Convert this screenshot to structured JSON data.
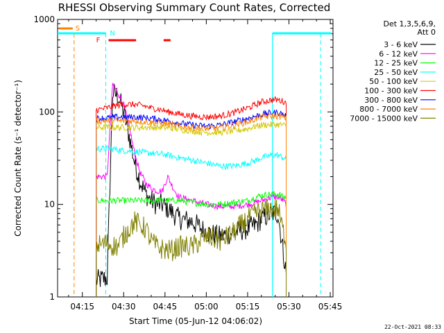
{
  "chart_data": {
    "type": "line",
    "title": "RHESSI Observing Summary Count Rates, Corrected",
    "xlabel": "Start Time (05-Jun-12 04:06:02)",
    "ylabel": "Corrected Count Rate (s⁻¹ detector⁻¹)",
    "yscale": "log",
    "ylim": [
      1,
      1000
    ],
    "xlim_minutes_after_0400": [
      6.0,
      106.0
    ],
    "x_ticks": [
      {
        "label": "04:15",
        "minute": 15
      },
      {
        "label": "04:30",
        "minute": 30
      },
      {
        "label": "04:45",
        "minute": 45
      },
      {
        "label": "05:00",
        "minute": 60
      },
      {
        "label": "05:15",
        "minute": 75
      },
      {
        "label": "05:30",
        "minute": 90
      },
      {
        "label": "05:45",
        "minute": 105
      }
    ],
    "y_ticks": [
      {
        "label": "1",
        "value": 1
      },
      {
        "label": "10",
        "value": 10
      },
      {
        "label": "100",
        "value": 100
      },
      {
        "label": "1000",
        "value": 1000
      }
    ],
    "legend_header": [
      "Det 1,3,5,6,9,",
      "Att 0"
    ],
    "legend_position": "right",
    "x_minutes_after_0400": [
      20,
      24,
      26,
      28,
      30,
      32,
      34,
      36,
      38,
      40,
      42,
      44,
      46,
      48,
      50,
      55,
      60,
      65,
      70,
      75,
      78,
      80,
      84,
      86,
      88,
      89
    ],
    "series": [
      {
        "name": "3 - 6 keV",
        "color": "#000000",
        "values": [
          1.5,
          1.6,
          160,
          150,
          100,
          55,
          28,
          18,
          13,
          11,
          10,
          10,
          9,
          8,
          7,
          6.5,
          5,
          4.5,
          5,
          5.5,
          6,
          7,
          8,
          8,
          3,
          1.8
        ]
      },
      {
        "name": "6 - 12 keV",
        "color": "#ff00ff",
        "values": [
          20,
          20,
          200,
          160,
          120,
          70,
          35,
          22,
          17,
          15,
          14,
          14,
          20,
          15,
          12,
          11,
          10,
          9.5,
          9.5,
          10,
          10.5,
          11,
          12,
          12,
          11,
          10
        ]
      },
      {
        "name": "12 - 25 keV",
        "color": "#00ff00",
        "values": [
          11,
          11,
          11,
          11,
          11,
          11,
          11,
          11,
          11,
          11,
          11,
          11,
          11,
          11,
          11,
          10.5,
          10,
          10,
          10.5,
          11,
          12,
          12.5,
          13,
          13,
          12,
          12
        ]
      },
      {
        "name": "25 - 50 keV",
        "color": "#00ffff",
        "values": [
          40,
          40,
          40,
          39,
          38,
          38,
          37,
          37,
          36,
          36,
          35,
          35,
          34,
          33,
          32,
          30,
          28,
          26,
          26,
          28,
          30,
          32,
          34,
          34,
          32,
          30
        ]
      },
      {
        "name": "50 - 100 keV",
        "color": "#d4c800",
        "values": [
          68,
          68,
          68,
          68,
          68,
          68,
          68,
          68,
          68,
          68,
          68,
          68,
          67,
          66,
          65,
          62,
          60,
          60,
          62,
          66,
          70,
          72,
          73,
          73,
          72,
          70
        ]
      },
      {
        "name": "100 - 300 keV",
        "color": "#ff0000",
        "values": [
          105,
          110,
          115,
          118,
          120,
          120,
          120,
          118,
          115,
          110,
          108,
          105,
          100,
          98,
          95,
          90,
          88,
          90,
          98,
          110,
          120,
          128,
          135,
          135,
          130,
          125
        ]
      },
      {
        "name": "300 - 800 keV",
        "color": "#0000ff",
        "values": [
          85,
          86,
          87,
          88,
          88,
          88,
          88,
          87,
          86,
          85,
          84,
          82,
          80,
          78,
          76,
          72,
          70,
          72,
          78,
          85,
          90,
          94,
          98,
          98,
          94,
          90
        ]
      },
      {
        "name": "800 - 7000 keV",
        "color": "#ff8000",
        "values": [
          80,
          80,
          80,
          80,
          80,
          80,
          80,
          79,
          78,
          77,
          76,
          75,
          74,
          72,
          70,
          68,
          66,
          67,
          72,
          78,
          84,
          88,
          90,
          90,
          88,
          85
        ]
      },
      {
        "name": "7000 - 15000 keV",
        "color": "#808000",
        "values": [
          3.6,
          3.8,
          3.6,
          3.5,
          4.5,
          5.5,
          6.5,
          6,
          5.5,
          4,
          3.5,
          3.3,
          3.2,
          3.2,
          3.5,
          3.5,
          4.5,
          4,
          5,
          7,
          8,
          8.5,
          9,
          9,
          5,
          4
        ]
      }
    ],
    "annotations": {
      "S": {
        "text": "S",
        "color": "#ff8000"
      },
      "N": {
        "text": "N",
        "color": "#00ffff"
      },
      "F": {
        "text": "F",
        "color": "#ff0000"
      }
    }
  },
  "footer": {
    "timestamp": "22-Oct-2021 08:33"
  }
}
